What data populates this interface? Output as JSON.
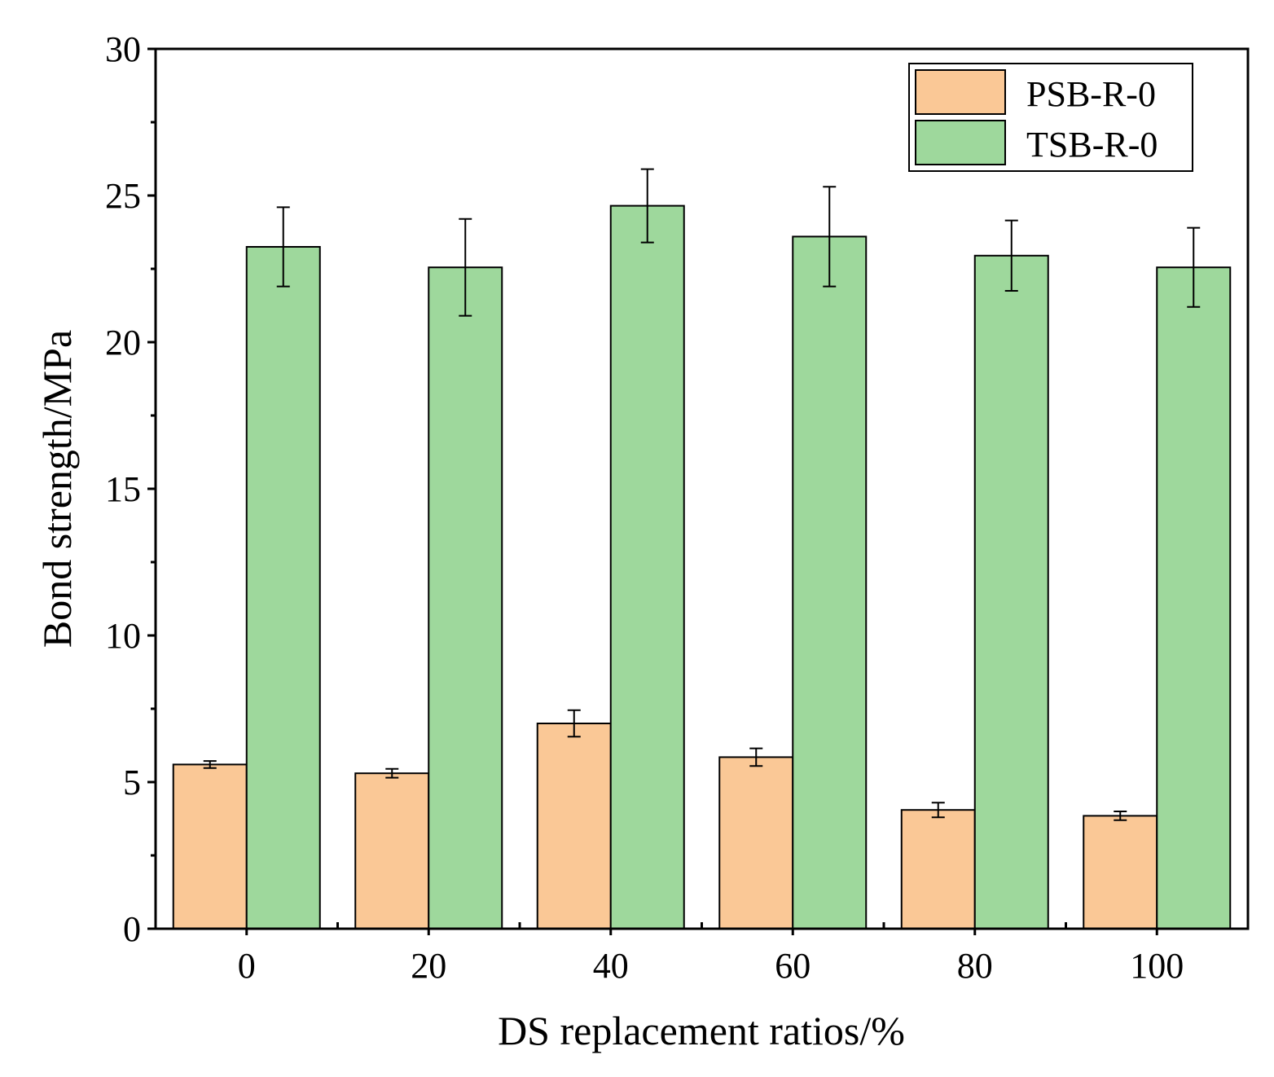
{
  "chart_data": {
    "type": "bar",
    "title": "",
    "xlabel": "DS replacement ratios/%",
    "ylabel": "Bond strength/MPa",
    "categories": [
      "0",
      "20",
      "40",
      "60",
      "80",
      "100"
    ],
    "ylim": [
      0,
      30
    ],
    "yticks": [
      "0",
      "5",
      "10",
      "15",
      "20",
      "25",
      "30"
    ],
    "grid": false,
    "legend_position": "top-right",
    "series": [
      {
        "name": "PSB-R-0",
        "color": "#FAC896",
        "values": [
          5.6,
          5.3,
          7.0,
          5.85,
          4.05,
          3.85
        ],
        "errors": [
          0.12,
          0.15,
          0.45,
          0.3,
          0.25,
          0.15
        ]
      },
      {
        "name": "TSB-R-0",
        "color": "#9ED89C",
        "values": [
          23.25,
          22.55,
          24.65,
          23.6,
          22.95,
          22.55
        ],
        "errors": [
          1.35,
          1.65,
          1.25,
          1.7,
          1.2,
          1.35
        ]
      }
    ]
  }
}
